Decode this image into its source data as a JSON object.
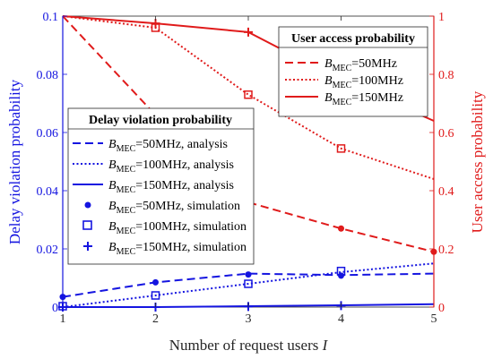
{
  "chart_data": {
    "type": "line",
    "xlabel": "Number of request users",
    "xlabel_var": "I",
    "ylabel_left": "Delay violation probability",
    "ylabel_right": "User access probability",
    "x": [
      1,
      2,
      3,
      4,
      5
    ],
    "xticks": [
      "1",
      "2",
      "3",
      "4",
      "5"
    ],
    "yticks_left": [
      "0",
      "0.02",
      "0.04",
      "0.06",
      "0.08",
      "0.1"
    ],
    "yticks_right": [
      "0",
      "0.2",
      "0.4",
      "0.6",
      "0.8",
      "1"
    ],
    "xlim": [
      1,
      5
    ],
    "ylim_left": [
      0,
      0.1
    ],
    "ylim_right": [
      0,
      1
    ],
    "colors": {
      "left_axis": "#1515e0",
      "right_axis": "#e01b1b"
    },
    "delay_series": [
      {
        "name": "BMEC=50MHz, analysis",
        "style": "dashed",
        "values": [
          0.0035,
          0.0085,
          0.0115,
          0.011,
          0.0115
        ]
      },
      {
        "name": "BMEC=100MHz, analysis",
        "style": "dotted",
        "values": [
          0.0,
          0.004,
          0.008,
          0.012,
          0.015
        ]
      },
      {
        "name": "BMEC=150MHz, analysis",
        "style": "solid",
        "values": [
          0.0,
          0.0,
          0.0003,
          0.0006,
          0.001
        ]
      }
    ],
    "delay_simulation": [
      {
        "name": "BMEC=50MHz, simulation",
        "marker": "dot",
        "values": [
          0.0035,
          0.0085,
          0.0112,
          0.0108,
          null
        ]
      },
      {
        "name": "BMEC=100MHz, simulation",
        "marker": "square",
        "values": [
          0.0003,
          0.004,
          0.008,
          0.0124,
          null
        ]
      },
      {
        "name": "BMEC=150MHz, simulation",
        "marker": "plus",
        "values": [
          0.0,
          0.0,
          0.0002,
          0.0005,
          null
        ]
      }
    ],
    "access_series": [
      {
        "name": "BMEC=50MHz",
        "style": "dashed",
        "values": [
          1.0,
          0.66,
          0.36,
          0.27,
          0.19
        ]
      },
      {
        "name": "BMEC=100MHz",
        "style": "dotted",
        "values": [
          1.0,
          0.96,
          0.73,
          0.545,
          0.44
        ]
      },
      {
        "name": "BMEC=150MHz",
        "style": "solid",
        "values": [
          1.0,
          0.975,
          0.945,
          0.78,
          0.64
        ]
      }
    ]
  },
  "legend_delay": {
    "title": "Delay violation probability",
    "entries": [
      {
        "pre": "B",
        "sub": "MEC",
        "post": "=50MHz, analysis"
      },
      {
        "pre": "B",
        "sub": "MEC",
        "post": "=100MHz, analysis"
      },
      {
        "pre": "B",
        "sub": "MEC",
        "post": "=150MHz, analysis"
      },
      {
        "pre": "B",
        "sub": "MEC",
        "post": "=50MHz, simulation"
      },
      {
        "pre": "B",
        "sub": "MEC",
        "post": "=100MHz, simulation"
      },
      {
        "pre": "B",
        "sub": "MEC",
        "post": "=150MHz, simulation"
      }
    ]
  },
  "legend_access": {
    "title": "User access probability",
    "entries": [
      {
        "pre": "B",
        "sub": "MEC",
        "post": "=50MHz"
      },
      {
        "pre": "B",
        "sub": "MEC",
        "post": "=100MHz"
      },
      {
        "pre": "B",
        "sub": "MEC",
        "post": "=150MHz"
      }
    ]
  }
}
